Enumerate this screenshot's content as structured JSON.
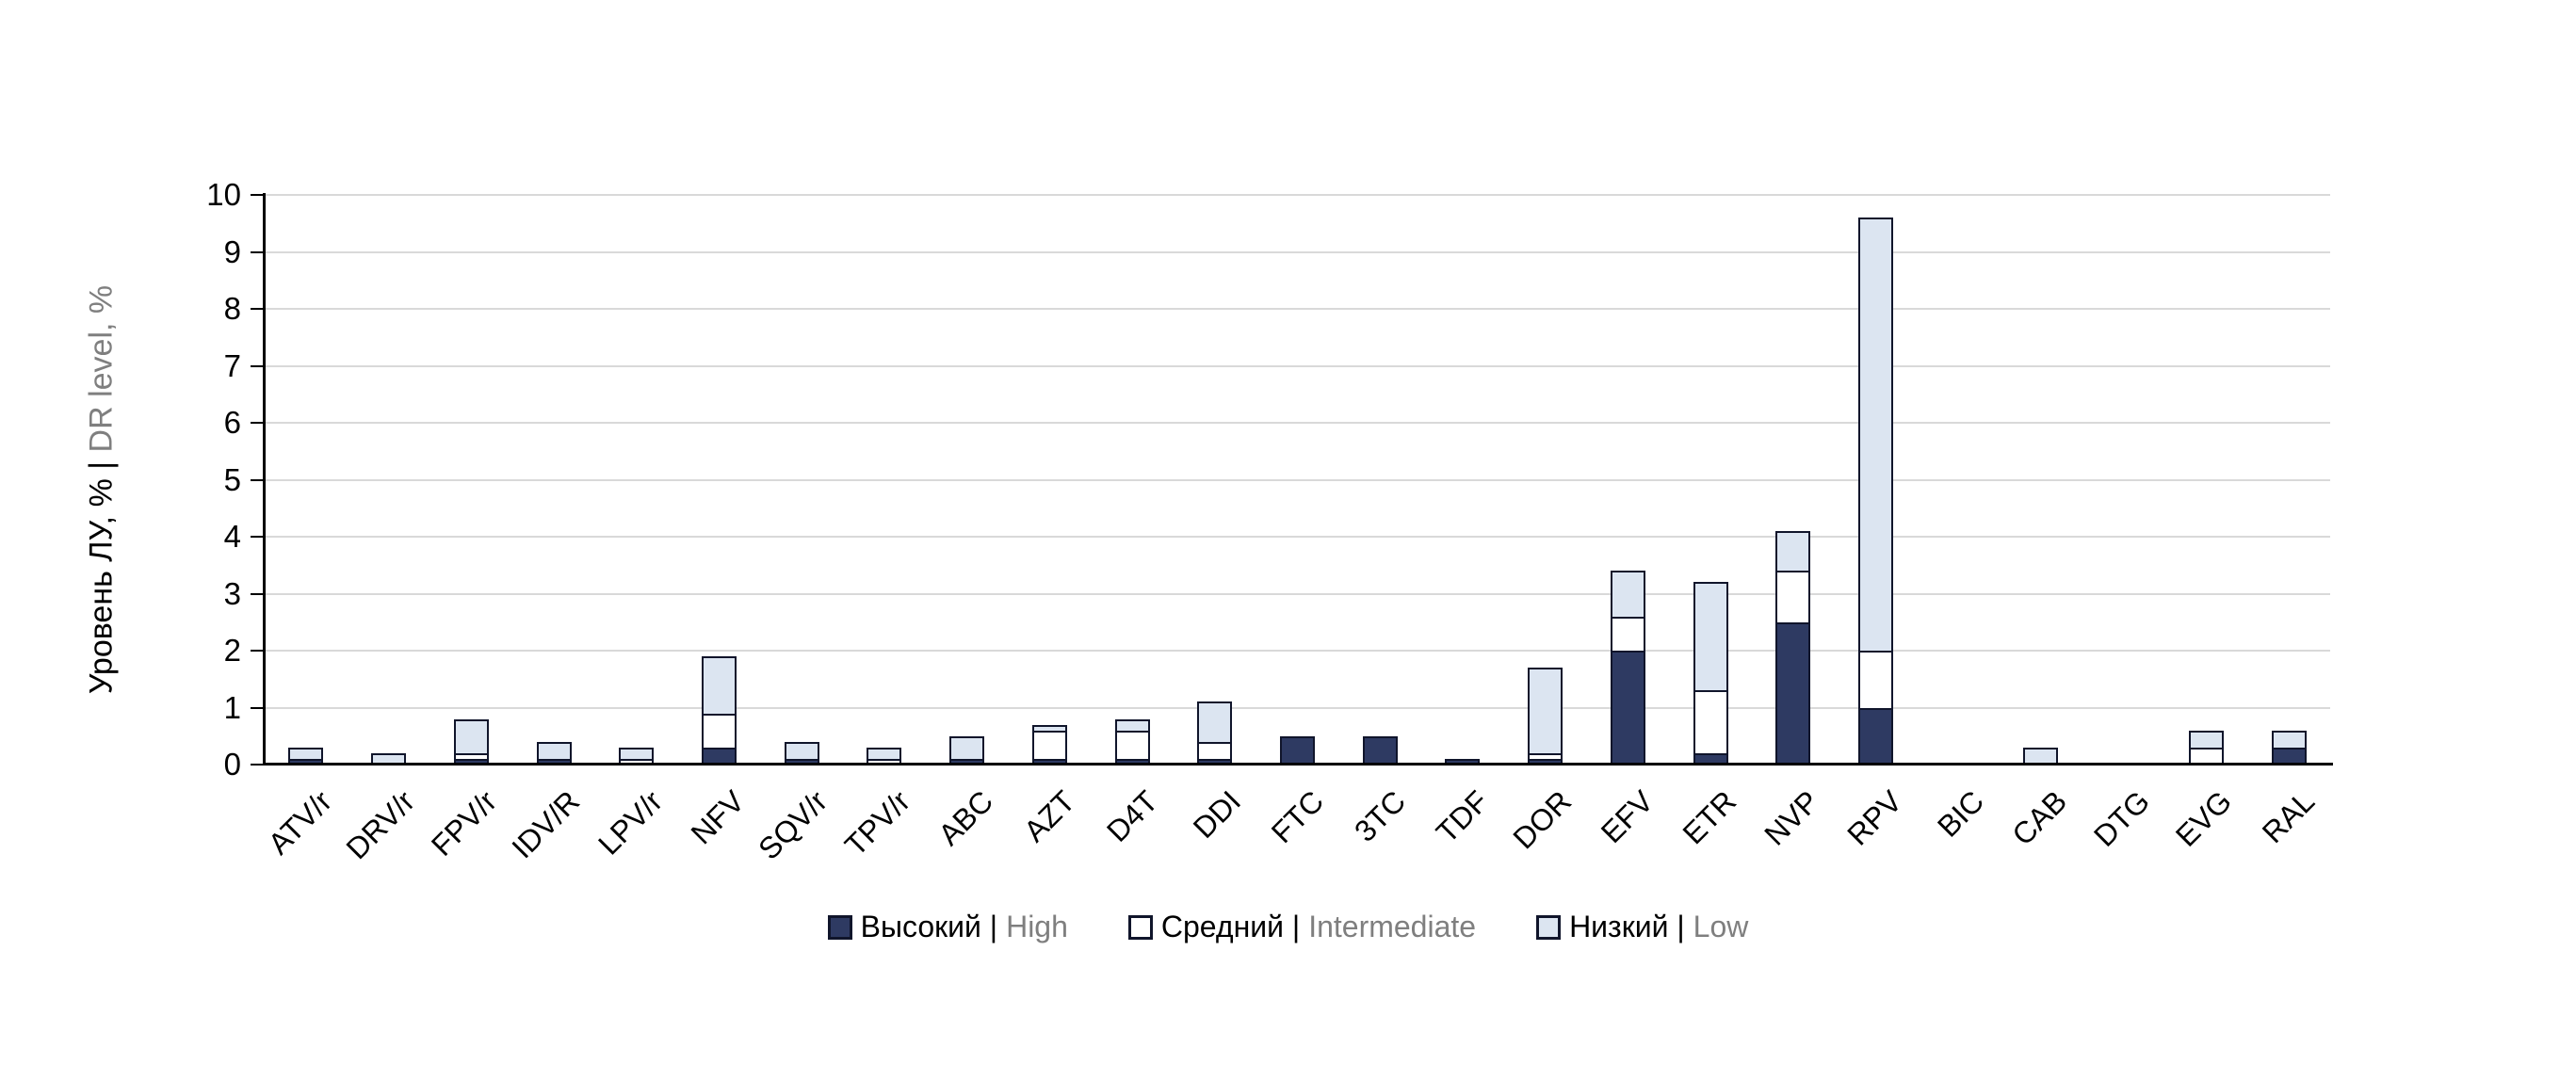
{
  "chart_data": {
    "type": "bar",
    "stacked": true,
    "grid": true,
    "legend_position": "bottom",
    "y_axis": {
      "title_black": "Уровень ЛУ, % |",
      "title_gray": "DR level, %",
      "min": 0,
      "max": 10,
      "tick_step": 1,
      "ticks": [
        0,
        1,
        2,
        3,
        4,
        5,
        6,
        7,
        8,
        9,
        10
      ]
    },
    "categories": [
      "ATV/r",
      "DRV/r",
      "FPV/r",
      "IDV/R",
      "LPV/r",
      "NFV",
      "SQV/r",
      "TPV/r",
      "ABC",
      "AZT",
      "D4T",
      "DDI",
      "FTC",
      "3TC",
      "TDF",
      "DOR",
      "EFV",
      "ETR",
      "NVP",
      "RPV",
      "BIC",
      "CAB",
      "DTG",
      "EVG",
      "RAL"
    ],
    "series": [
      {
        "key": "high",
        "label_ru": "Высокий |",
        "label_en": "High",
        "color": "#2e3a62",
        "values": [
          0.1,
          0,
          0.1,
          0.1,
          0,
          0.3,
          0.1,
          0,
          0.1,
          0.1,
          0.1,
          0.1,
          0.5,
          0.5,
          0.1,
          0.1,
          2.0,
          0.2,
          2.5,
          1.0,
          0,
          0,
          0,
          0,
          0.3
        ]
      },
      {
        "key": "intermediate",
        "label_ru": "Средний |",
        "label_en": "Intermediate",
        "color": "#ffffff",
        "values": [
          0,
          0,
          0.1,
          0,
          0.1,
          0.6,
          0,
          0.1,
          0,
          0.5,
          0.5,
          0.3,
          0,
          0,
          0,
          0.1,
          0.6,
          1.1,
          0.9,
          1.0,
          0,
          0,
          0,
          0.3,
          0
        ]
      },
      {
        "key": "low",
        "label_ru": "Низкий |",
        "label_en": "Low",
        "color": "#dce5f1",
        "values": [
          0.2,
          0.2,
          0.6,
          0.3,
          0.2,
          1.0,
          0.3,
          0.2,
          0.4,
          0.1,
          0.2,
          0.7,
          0,
          0,
          0,
          1.5,
          0.8,
          1.9,
          0.7,
          7.6,
          0,
          0.3,
          0,
          0.3,
          0.3
        ]
      }
    ],
    "colors": {
      "axis": "#000000",
      "gridline": "#d9d9d9",
      "bar_border": "#10152b",
      "secondary_text": "#7f7f7f"
    }
  }
}
